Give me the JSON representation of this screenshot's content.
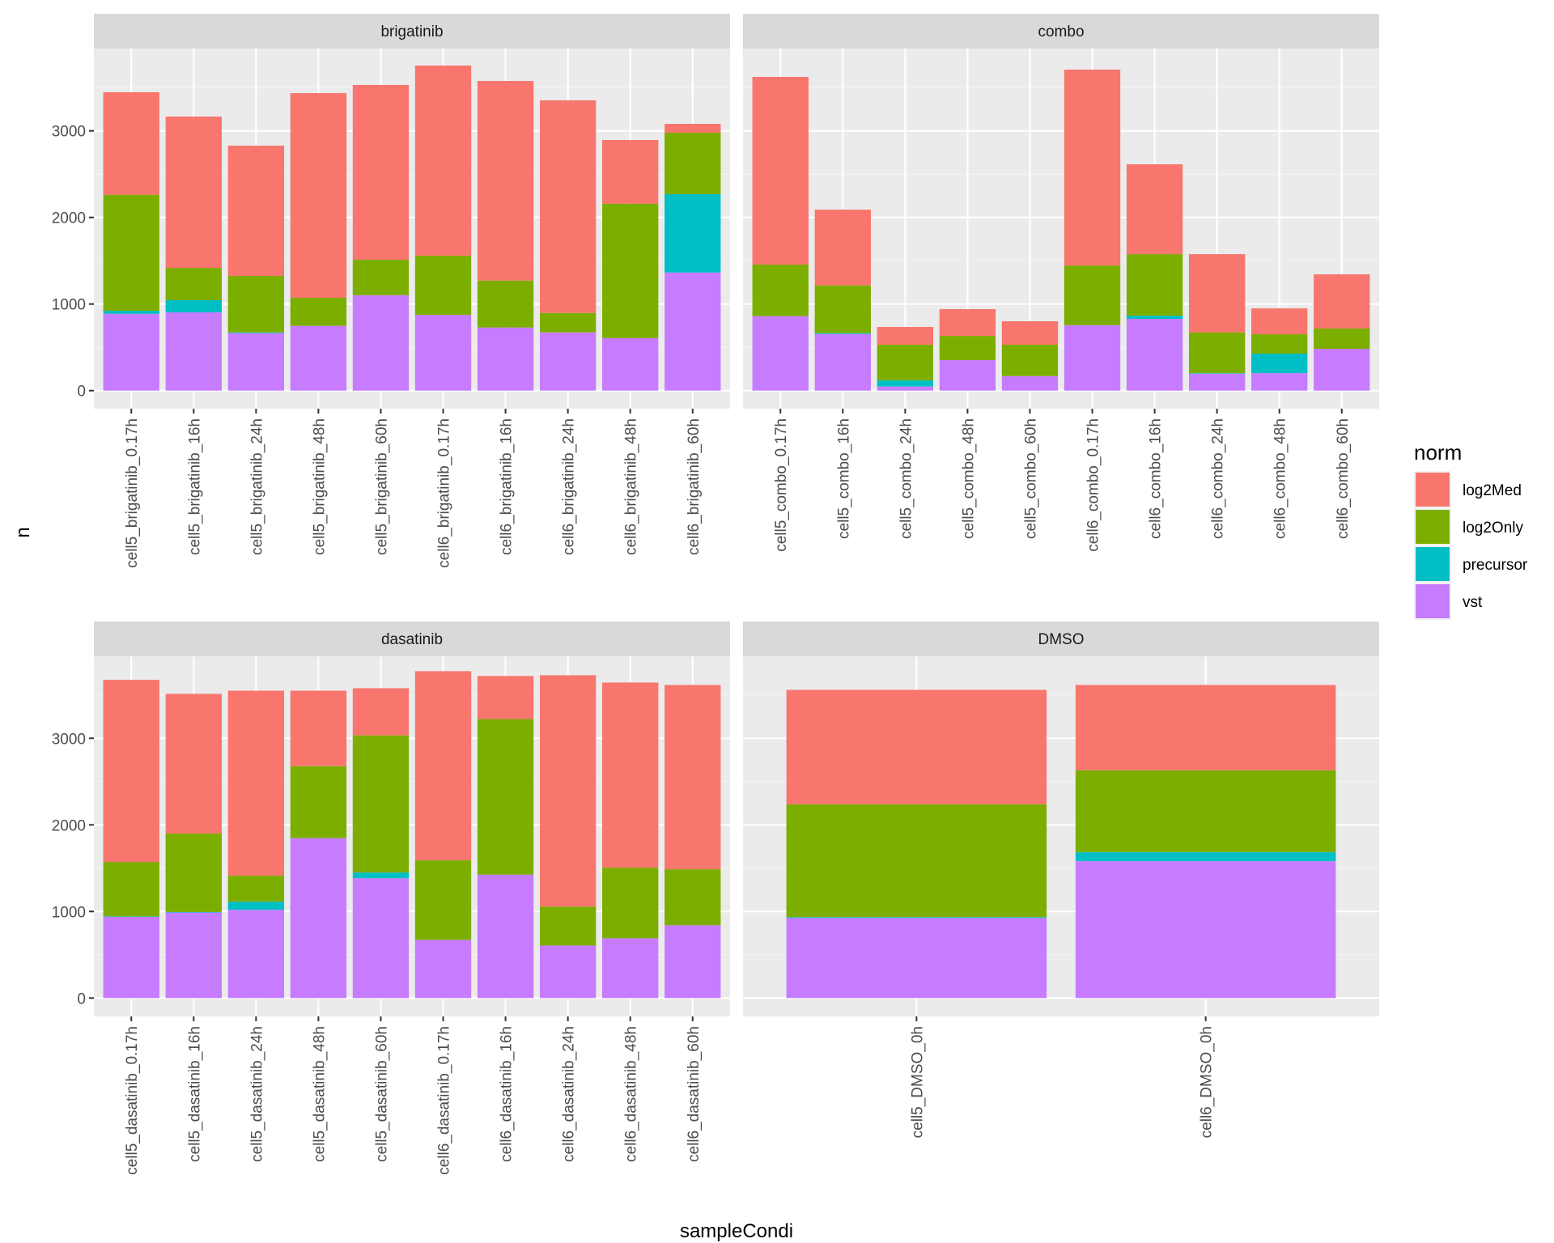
{
  "chart_data": {
    "type": "bar",
    "stacked": true,
    "faceted": true,
    "xlabel": "sampleCondi",
    "ylabel": "n",
    "ylim": [
      0,
      3950
    ],
    "yticks": [
      0,
      1000,
      2000,
      3000
    ],
    "grid": true,
    "legend": {
      "title": "norm",
      "placement": "right",
      "entries": [
        {
          "name": "log2Med",
          "color": "#F8766D"
        },
        {
          "name": "log2Only",
          "color": "#7CAE00"
        },
        {
          "name": "precursor",
          "color": "#00BFC4"
        },
        {
          "name": "vst",
          "color": "#C77CFF"
        }
      ]
    },
    "stack_order_bottom_to_top": [
      "vst",
      "precursor",
      "log2Only",
      "log2Med"
    ],
    "panels": [
      {
        "title": "brigatinib",
        "categories": [
          "cell5_brigatinib_0.17h",
          "cell5_brigatinib_16h",
          "cell5_brigatinib_24h",
          "cell5_brigatinib_48h",
          "cell5_brigatinib_60h",
          "cell6_brigatinib_0.17h",
          "cell6_brigatinib_16h",
          "cell6_brigatinib_24h",
          "cell6_brigatinib_48h",
          "cell6_brigatinib_60h"
        ],
        "series": [
          {
            "name": "vst",
            "values": [
              888,
              904,
              664,
              748,
              1103,
              875,
              729,
              673,
              607,
              1364
            ]
          },
          {
            "name": "precursor",
            "values": [
              34,
              140,
              9,
              0,
              0,
              0,
              0,
              0,
              0,
              904
            ]
          },
          {
            "name": "log2Only",
            "values": [
              1340,
              373,
              651,
              324,
              408,
              683,
              542,
              224,
              1552,
              710
            ]
          },
          {
            "name": "log2Med",
            "values": [
              1184,
              1748,
              1505,
              2364,
              2019,
              2196,
              2305,
              2455,
              735,
              103
            ]
          }
        ]
      },
      {
        "title": "combo",
        "categories": [
          "cell5_combo_0.17h",
          "cell5_combo_16h",
          "cell5_combo_24h",
          "cell5_combo_48h",
          "cell5_combo_60h",
          "cell6_combo_0.17h",
          "cell6_combo_16h",
          "cell6_combo_24h",
          "cell6_combo_48h",
          "cell6_combo_60h"
        ],
        "series": [
          {
            "name": "vst",
            "values": [
              860,
              654,
              47,
              352,
              168,
              756,
              829,
              196,
              202,
              483
            ]
          },
          {
            "name": "precursor",
            "values": [
              0,
              10,
              71,
              0,
              0,
              0,
              37,
              6,
              225,
              0
            ]
          },
          {
            "name": "log2Only",
            "values": [
              595,
              551,
              412,
              280,
              362,
              689,
              710,
              471,
              224,
              234
            ]
          },
          {
            "name": "log2Med",
            "values": [
              2168,
              875,
              205,
              309,
              271,
              2262,
              1038,
              903,
              299,
              626
            ]
          }
        ]
      },
      {
        "title": "dasatinib",
        "categories": [
          "cell5_dasatinib_0.17h",
          "cell5_dasatinib_16h",
          "cell5_dasatinib_24h",
          "cell5_dasatinib_48h",
          "cell5_dasatinib_60h",
          "cell6_dasatinib_0.17h",
          "cell6_dasatinib_16h",
          "cell6_dasatinib_24h",
          "cell6_dasatinib_48h",
          "cell6_dasatinib_60h"
        ],
        "series": [
          {
            "name": "vst",
            "values": [
              938,
              988,
              1019,
              1847,
              1384,
              672,
              1425,
              606,
              691,
              841
            ]
          },
          {
            "name": "precursor",
            "values": [
              6,
              6,
              94,
              0,
              66,
              0,
              0,
              0,
              0,
              0
            ]
          },
          {
            "name": "log2Only",
            "values": [
              628,
              906,
              300,
              831,
              1584,
              919,
              1797,
              450,
              815,
              647
            ]
          },
          {
            "name": "log2Med",
            "values": [
              2103,
              1613,
              2137,
              872,
              544,
              2184,
              497,
              2672,
              2138,
              2128
            ]
          }
        ]
      },
      {
        "title": "DMSO",
        "categories": [
          "cell5_DMSO_0h",
          "cell6_DMSO_0h"
        ],
        "series": [
          {
            "name": "vst",
            "values": [
              925,
              1581
            ]
          },
          {
            "name": "precursor",
            "values": [
              10,
              103
            ]
          },
          {
            "name": "log2Only",
            "values": [
              1303,
              947
            ]
          },
          {
            "name": "log2Med",
            "values": [
              1321,
              985
            ]
          }
        ]
      }
    ]
  }
}
